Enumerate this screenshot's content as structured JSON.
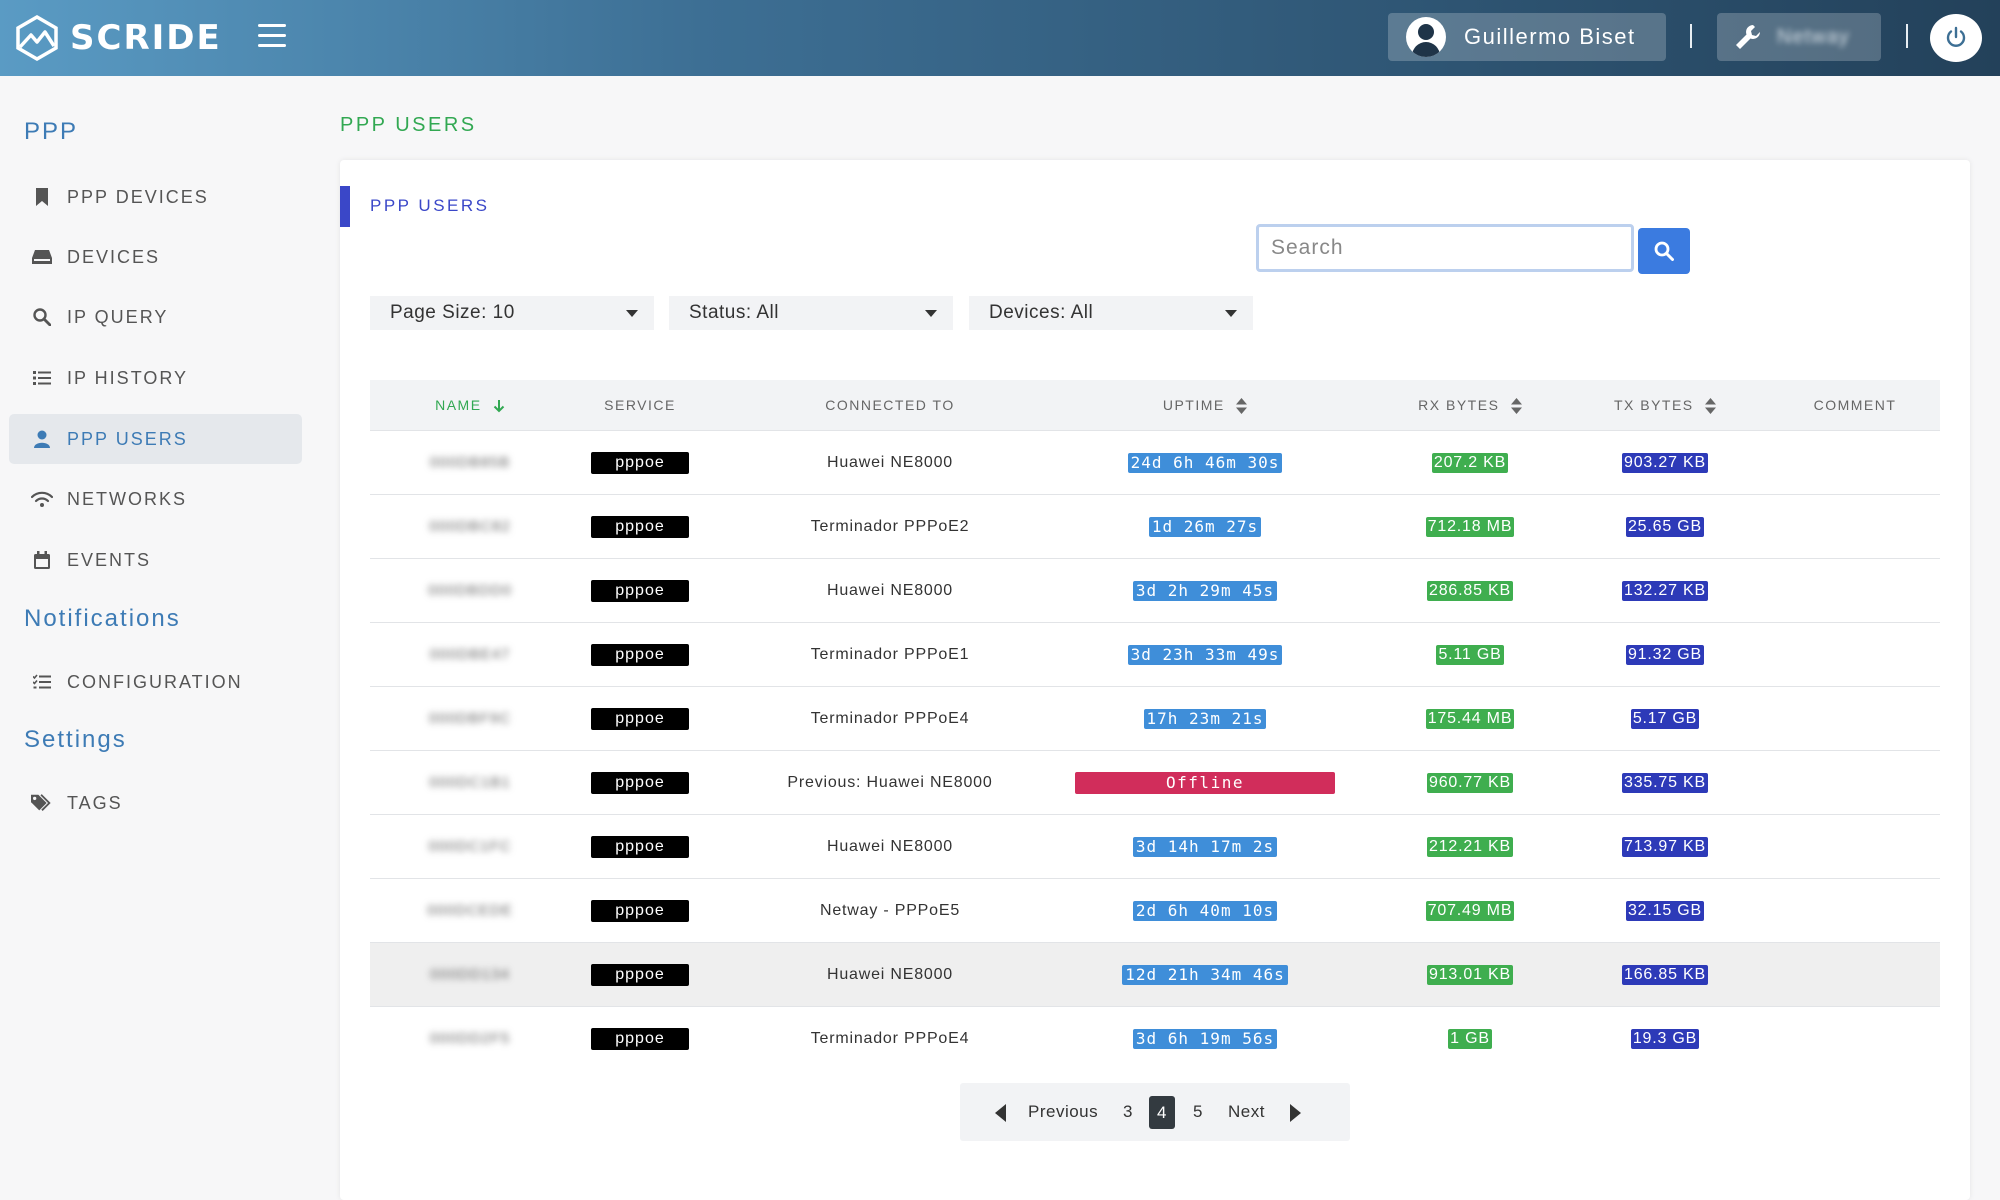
{
  "header": {
    "logo_text": "SCRIDE",
    "user_name": "Guillermo Biset",
    "organization": "Netway"
  },
  "sidebar": {
    "sections": [
      {
        "title": "PPP",
        "items": [
          {
            "label": "PPP DEVICES",
            "icon": "bookmark-icon"
          },
          {
            "label": "DEVICES",
            "icon": "device-icon"
          },
          {
            "label": "IP QUERY",
            "icon": "search-icon"
          },
          {
            "label": "IP HISTORY",
            "icon": "list-icon"
          },
          {
            "label": "PPP USERS",
            "icon": "user-icon",
            "active": true
          },
          {
            "label": "NETWORKS",
            "icon": "wifi-icon"
          },
          {
            "label": "EVENTS",
            "icon": "calendar-icon"
          }
        ]
      },
      {
        "title": "Notifications",
        "items": [
          {
            "label": "CONFIGURATION",
            "icon": "checklist-icon"
          }
        ]
      },
      {
        "title": "Settings",
        "items": [
          {
            "label": "TAGS",
            "icon": "tags-icon"
          }
        ]
      }
    ]
  },
  "page": {
    "title": "PPP USERS",
    "card_title": "PPP USERS"
  },
  "search": {
    "placeholder": "Search",
    "value": ""
  },
  "filters": {
    "page_size": "Page Size: 10",
    "status": "Status: All",
    "devices": "Devices: All"
  },
  "table": {
    "columns": [
      "NAME",
      "SERVICE",
      "CONNECTED TO",
      "UPTIME",
      "RX BYTES",
      "TX BYTES",
      "COMMENT"
    ],
    "rows": [
      {
        "name": "000DB85B",
        "service": "pppoe",
        "connected_to": "Huawei NE8000",
        "uptime": "24d 6h 46m 30s",
        "online": true,
        "rx": "207.2 KB",
        "tx": "903.27 KB",
        "comment": ""
      },
      {
        "name": "000DBC82",
        "service": "pppoe",
        "connected_to": "Terminador PPPoE2",
        "uptime": "1d 26m 27s",
        "online": true,
        "rx": "712.18 MB",
        "tx": "25.65 GB",
        "comment": ""
      },
      {
        "name": "000DBDD0",
        "service": "pppoe",
        "connected_to": "Huawei NE8000",
        "uptime": "3d 2h 29m 45s",
        "online": true,
        "rx": "286.85 KB",
        "tx": "132.27 KB",
        "comment": ""
      },
      {
        "name": "000DBE47",
        "service": "pppoe",
        "connected_to": "Terminador PPPoE1",
        "uptime": "3d 23h 33m 49s",
        "online": true,
        "rx": "5.11 GB",
        "tx": "91.32 GB",
        "comment": ""
      },
      {
        "name": "000DBF9C",
        "service": "pppoe",
        "connected_to": "Terminador PPPoE4",
        "uptime": "17h 23m 21s",
        "online": true,
        "rx": "175.44 MB",
        "tx": "5.17 GB",
        "comment": ""
      },
      {
        "name": "000DC1B1",
        "service": "pppoe",
        "connected_to": "Previous: Huawei NE8000",
        "uptime": "Offline",
        "online": false,
        "rx": "960.77 KB",
        "tx": "335.75 KB",
        "comment": ""
      },
      {
        "name": "000DC1FC",
        "service": "pppoe",
        "connected_to": "Huawei NE8000",
        "uptime": "3d 14h 17m 2s",
        "online": true,
        "rx": "212.21 KB",
        "tx": "713.97 KB",
        "comment": ""
      },
      {
        "name": "000DCEDE",
        "service": "pppoe",
        "connected_to": "Netway - PPPoE5",
        "uptime": "2d 6h 40m 10s",
        "online": true,
        "rx": "707.49 MB",
        "tx": "32.15 GB",
        "comment": ""
      },
      {
        "name": "000DD134",
        "service": "pppoe",
        "connected_to": "Huawei NE8000",
        "uptime": "12d 21h 34m 46s",
        "online": true,
        "rx": "913.01 KB",
        "tx": "166.85 KB",
        "comment": ""
      },
      {
        "name": "000DD2F5",
        "service": "pppoe",
        "connected_to": "Terminador PPPoE4",
        "uptime": "3d 6h 19m 56s",
        "online": true,
        "rx": "1 GB",
        "tx": "19.3 GB",
        "comment": ""
      }
    ]
  },
  "pagination": {
    "previous": "Previous",
    "next": "Next",
    "pages": [
      "3",
      "4",
      "5"
    ],
    "current": "4"
  },
  "colors": {
    "accent_blue": "#3d7bb5",
    "title_green": "#32a852",
    "card_indigo": "#3a47c8",
    "uptime_blue": "#3f8ed9",
    "offline_red": "#d12d5b",
    "rx_green": "#3fae4f",
    "tx_indigo": "#2d3ab8"
  }
}
